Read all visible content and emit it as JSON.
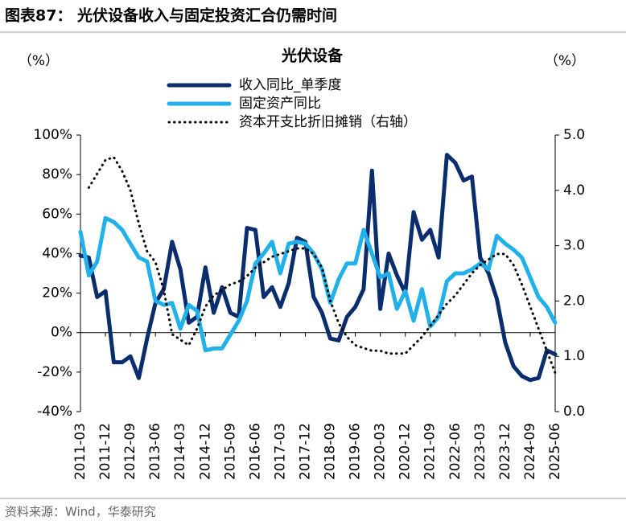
{
  "header": "图表87：  光伏设备收入与固定投资汇合仍需时间",
  "source": "资料来源：Wind，华泰研究",
  "chart_data": {
    "type": "line",
    "title": "光伏设备",
    "y_label": "（%）",
    "y2_label": "（%）",
    "categories": [
      "2011-03",
      null,
      null,
      "2011-12",
      null,
      null,
      "2012-09",
      null,
      null,
      "2013-06",
      null,
      null,
      "2014-03",
      null,
      null,
      "2014-12",
      null,
      null,
      "2015-09",
      null,
      null,
      "2016-06",
      null,
      null,
      "2017-03",
      null,
      null,
      "2017-12",
      null,
      null,
      "2018-09",
      null,
      null,
      "2019-06",
      null,
      null,
      "2020-03",
      null,
      null,
      "2020-12",
      null,
      null,
      "2021-09",
      null,
      null,
      "2022-06",
      null,
      null,
      "2023-03",
      null,
      null,
      "2023-12",
      null,
      null,
      "2024-09",
      null,
      null,
      "2025-06"
    ],
    "series": [
      {
        "name": "收入同比_单季度",
        "color": "#0b2d6e",
        "style": "solid",
        "values": [
          39,
          38,
          18,
          21,
          -15,
          -15,
          -12,
          -23,
          -3,
          15,
          22,
          46,
          32,
          5,
          8,
          33,
          10,
          23,
          10,
          8,
          53,
          52,
          18,
          23,
          13,
          25,
          48,
          46,
          18,
          10,
          -3,
          -4,
          8,
          13,
          22,
          82,
          12,
          40,
          29,
          20,
          61,
          47,
          52,
          38,
          90,
          86,
          77,
          79,
          38,
          30,
          17,
          -5,
          -17,
          -22,
          -24,
          -23,
          -9,
          -11
        ]
      },
      {
        "name": "固定资产同比",
        "color": "#21b1ea",
        "style": "solid",
        "values": [
          51,
          29,
          36,
          58,
          56,
          52,
          45,
          38,
          36,
          16,
          14,
          15,
          2,
          14,
          11,
          -9,
          -8,
          -8,
          -1,
          6,
          16,
          35,
          40,
          46,
          30,
          45,
          46,
          45,
          40,
          32,
          15,
          27,
          35,
          35,
          52,
          40,
          28,
          30,
          12,
          21,
          6,
          22,
          3,
          8,
          26,
          30,
          30,
          32,
          35,
          32,
          49,
          45,
          42,
          38,
          28,
          18,
          13,
          5
        ]
      },
      {
        "name": "资本开支比折旧摊销（右轴）",
        "color": "#000000",
        "style": "dotted",
        "axis": "y2",
        "values": [
          null,
          4.05,
          4.3,
          4.55,
          4.6,
          4.35,
          4.0,
          3.4,
          2.9,
          2.7,
          2.2,
          1.4,
          1.3,
          1.2,
          1.5,
          1.9,
          2.1,
          2.2,
          2.3,
          2.35,
          2.45,
          2.6,
          2.7,
          2.8,
          2.85,
          2.9,
          2.95,
          2.95,
          2.85,
          2.6,
          2.0,
          1.6,
          1.35,
          1.2,
          1.15,
          1.1,
          1.1,
          1.05,
          1.05,
          1.05,
          1.2,
          1.35,
          1.55,
          1.75,
          1.95,
          2.1,
          2.3,
          2.5,
          2.65,
          2.75,
          2.85,
          2.85,
          2.65,
          2.3,
          1.9,
          1.5,
          1.1,
          0.7
        ]
      }
    ],
    "ylim": [
      -40,
      100
    ],
    "yticks": [
      {
        "value": -40,
        "label": "-40%"
      },
      {
        "value": -20,
        "label": "-20%"
      },
      {
        "value": 0,
        "label": "0%"
      },
      {
        "value": 20,
        "label": "20%"
      },
      {
        "value": 40,
        "label": "40%"
      },
      {
        "value": 60,
        "label": "60%"
      },
      {
        "value": 80,
        "label": "80%"
      },
      {
        "value": 100,
        "label": "100%"
      }
    ],
    "y2lim": [
      0,
      5
    ],
    "y2ticks": [
      {
        "value": 0,
        "label": "0.0"
      },
      {
        "value": 1,
        "label": "1.0"
      },
      {
        "value": 2,
        "label": "2.0"
      },
      {
        "value": 3,
        "label": "3.0"
      },
      {
        "value": 4,
        "label": "4.0"
      },
      {
        "value": 5,
        "label": "5.0"
      }
    ],
    "grid": false,
    "legend": "top"
  }
}
